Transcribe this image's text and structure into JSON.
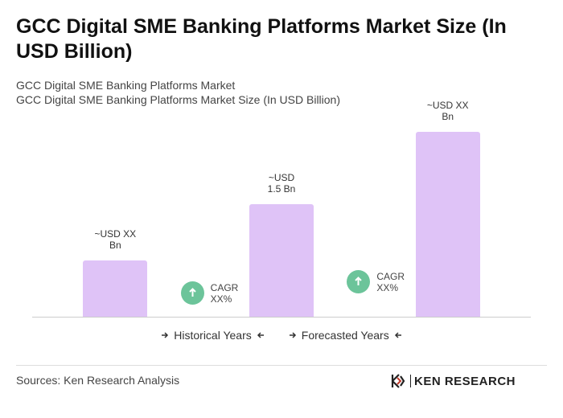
{
  "chart_data": {
    "type": "bar",
    "title": "GCC Digital SME Banking Platforms Market Size (In USD Billion)",
    "subtitle": [
      "GCC Digital SME Banking Platforms Market",
      "GCC Digital SME Banking Platforms Market Size (In USD Billion)"
    ],
    "categories": [
      null,
      null,
      null
    ],
    "values": [
      0.75,
      1.5,
      2.46
    ],
    "value_labels": [
      "~USD XX Bn",
      "~USD 1.5 Bn",
      "~USD XX Bn"
    ],
    "color": "#dfc3f7",
    "annotations": [
      "CAGR XX%",
      "CAGR XX%"
    ],
    "annotation_color": "#6cc49a",
    "legend": [
      "Historical Years",
      "Forecasted Years"
    ]
  },
  "footer": {
    "source": "Sources: Ken Research Analysis",
    "logo": "KEN RESEARCH"
  }
}
